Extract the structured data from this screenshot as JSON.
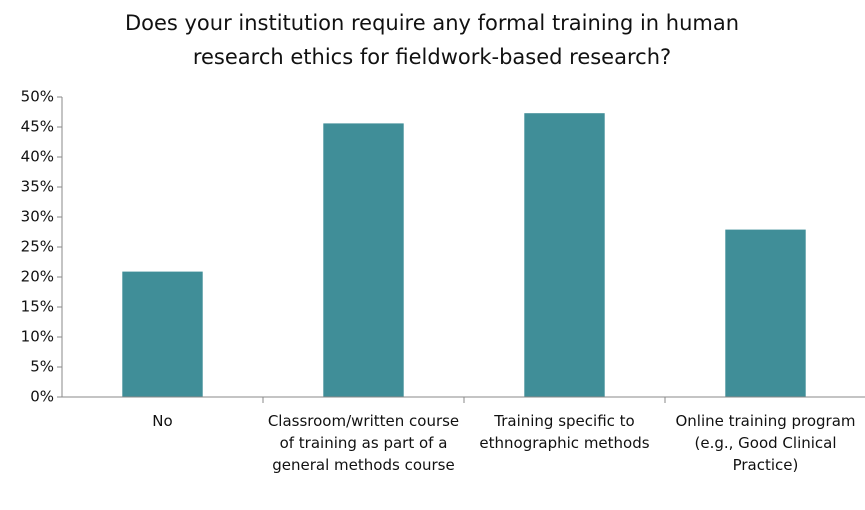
{
  "chart_data": {
    "type": "bar",
    "title": "Does your institution require any formal training in human research ethics for fieldwork-based research?",
    "categories": [
      "No",
      "Classroom/written course of training as part of a general methods course",
      "Training specific to ethnographic methods",
      "Online training program (e.g., Good Clinical Practice)"
    ],
    "values": [
      20.9,
      45.6,
      47.3,
      27.9
    ],
    "color": "#408e98",
    "ylim": [
      0,
      50
    ],
    "yticks": [
      {
        "value": 0,
        "label": "0%"
      },
      {
        "value": 5,
        "label": "5%"
      },
      {
        "value": 10,
        "label": "10%"
      },
      {
        "value": 15,
        "label": "15%"
      },
      {
        "value": 20,
        "label": "20%"
      },
      {
        "value": 25,
        "label": "25%"
      },
      {
        "value": 30,
        "label": "30%"
      },
      {
        "value": 35,
        "label": "35%"
      },
      {
        "value": 40,
        "label": "40%"
      },
      {
        "value": 45,
        "label": "45%"
      },
      {
        "value": 50,
        "label": "50%"
      }
    ],
    "grid": false
  }
}
